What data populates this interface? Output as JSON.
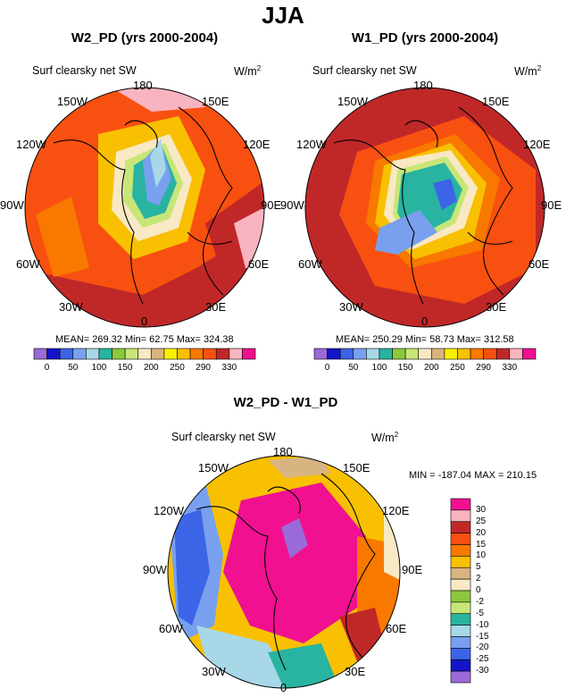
{
  "title": "JJA",
  "panels": [
    {
      "id": "w2",
      "title": "W2_PD (yrs 2000-2004)",
      "variable": "Surf clearsky net SW",
      "units_base": "W/m",
      "units_exp": "2",
      "stats": "MEAN= 269.32  Min=  62.75  Max= 324.38"
    },
    {
      "id": "w1",
      "title": "W1_PD (yrs 2000-2004)",
      "variable": "Surf clearsky net SW",
      "units_base": "W/m",
      "units_exp": "2",
      "stats": "MEAN= 250.29  Min=  58.73  Max= 312.58"
    }
  ],
  "diff": {
    "title": "W2_PD - W1_PD",
    "variable": "Surf clearsky net SW",
    "units_base": "W/m",
    "units_exp": "2",
    "stats": "MIN = -187.04  MAX = 210.15"
  },
  "lon_labels": {
    "top": "180",
    "top_left": "150W",
    "top_right": "150E",
    "upper_left": "120W",
    "upper_right": "120E",
    "left": "90W",
    "right": "90E",
    "lower_left": "60W",
    "lower_right": "60E",
    "bottom_left": "30W",
    "bottom_right": "30E",
    "bottom": "0"
  },
  "abs_colorbar": {
    "colors": [
      "#9a6ad8",
      "#1414c8",
      "#3c64e6",
      "#78a0ee",
      "#a8d8e8",
      "#28b4a0",
      "#8cc83c",
      "#c8e678",
      "#f8e8c4",
      "#d8b480",
      "#f8f000",
      "#f8c000",
      "#f87800",
      "#f85010",
      "#c02828",
      "#f8b4c0",
      "#f01090"
    ],
    "tick_labels": [
      "0",
      "50",
      "100",
      "150",
      "200",
      "250",
      "290",
      "330"
    ]
  },
  "diff_colorbar": {
    "colors": [
      "#f01090",
      "#f8b4c0",
      "#c02828",
      "#f85010",
      "#f87800",
      "#f8c000",
      "#d8b480",
      "#f8e8c4",
      "#8cc83c",
      "#c8e678",
      "#28b4a0",
      "#a8d8e8",
      "#78a0ee",
      "#3c64e6",
      "#1414c8",
      "#9a6ad8"
    ],
    "tick_labels": [
      "30",
      "25",
      "20",
      "15",
      "10",
      "5",
      "2",
      "0",
      "-2",
      "-5",
      "-10",
      "-15",
      "-20",
      "-25",
      "-30"
    ]
  }
}
